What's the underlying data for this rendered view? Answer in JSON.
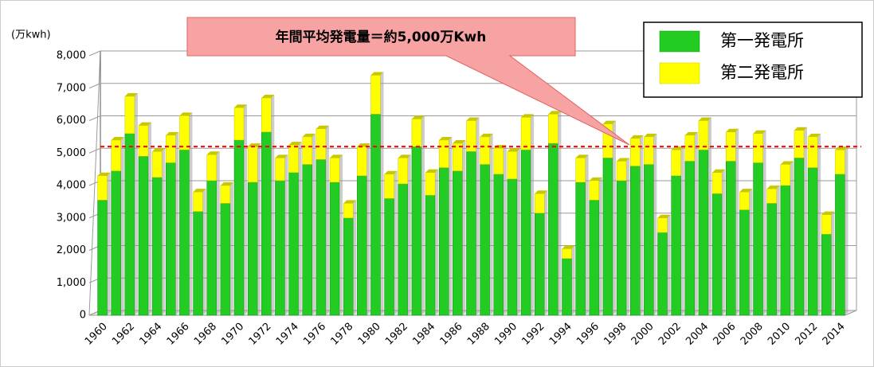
{
  "chart_data": {
    "type": "stacked_bar",
    "y_unit_label": "(万kwh)",
    "annotation": "年間平均発電量＝約5,000万Kwh",
    "average_line": 5200,
    "average_line_color": "#ff0000",
    "categories": [
      "1960",
      null,
      "1962",
      null,
      "1964",
      null,
      "1966",
      null,
      "1968",
      null,
      "1970",
      null,
      "1972",
      null,
      "1974",
      null,
      "1976",
      null,
      "1978",
      null,
      "1980",
      null,
      "1982",
      null,
      "1984",
      null,
      "1986",
      null,
      "1988",
      null,
      "1990",
      null,
      "1992",
      null,
      "1994",
      null,
      "1996",
      null,
      "1998",
      null,
      "2000",
      null,
      "2002",
      null,
      "2004",
      null,
      "2006",
      null,
      "2008",
      null,
      "2010",
      null,
      "2012",
      null,
      "2014"
    ],
    "series": [
      {
        "name": "第一発電所",
        "color": "#22cc22",
        "values": [
          3550,
          4450,
          5600,
          4900,
          4250,
          4700,
          5100,
          3200,
          4150,
          3450,
          5400,
          4100,
          5650,
          4150,
          4400,
          4650,
          4800,
          4100,
          3000,
          4300,
          6200,
          3600,
          4050,
          5200,
          3700,
          4550,
          4450,
          5050,
          4650,
          4350,
          4200,
          5100,
          3150,
          5300,
          1750,
          4100,
          3550,
          4850,
          4150,
          4600,
          4650,
          2550,
          4300,
          4750,
          5100,
          3750,
          4750,
          3250,
          4700,
          3450,
          4000,
          4850,
          4550,
          2500,
          4350
        ]
      },
      {
        "name": "第二発電所",
        "color": "#ffff00",
        "values": [
          750,
          950,
          1150,
          950,
          800,
          850,
          1050,
          600,
          800,
          550,
          1000,
          1100,
          1050,
          700,
          850,
          850,
          950,
          750,
          450,
          900,
          1200,
          750,
          800,
          850,
          700,
          850,
          850,
          950,
          850,
          800,
          850,
          1000,
          600,
          900,
          300,
          750,
          600,
          1050,
          600,
          850,
          850,
          450,
          800,
          800,
          900,
          650,
          900,
          550,
          900,
          450,
          650,
          850,
          950,
          600,
          750
        ]
      }
    ],
    "ylim": [
      0,
      8000
    ],
    "yticks": [
      0,
      {
        "value": 1000,
        "label": "1,000"
      },
      {
        "value": 2000,
        "label": "2,000"
      },
      {
        "value": 3000,
        "label": "3,000"
      },
      {
        "value": 4000,
        "label": "4,000"
      },
      {
        "value": 5000,
        "label": "5,000"
      },
      {
        "value": 6000,
        "label": "6,000"
      },
      {
        "value": 7000,
        "label": "7,000"
      },
      {
        "value": 8000,
        "label": "8,000"
      }
    ],
    "grid": true
  }
}
